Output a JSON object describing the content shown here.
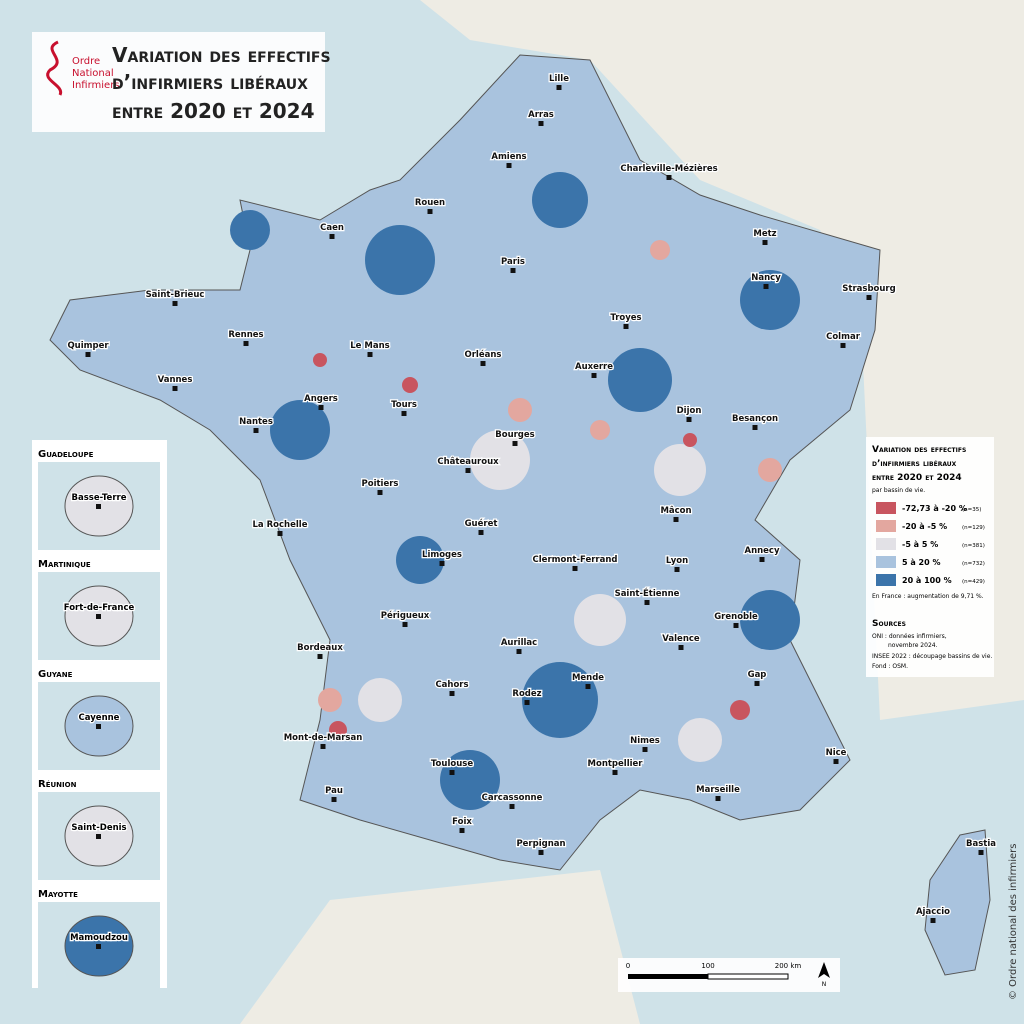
{
  "header": {
    "logo": [
      "Ordre",
      "National",
      "Infirmiers"
    ],
    "title": [
      "Variation des effectifs",
      "d’infirmiers libéraux",
      "entre 2020 et 2024"
    ]
  },
  "cities": [
    "Lille",
    "Arras",
    "Amiens",
    "Charleville-Mézières",
    "Rouen",
    "Caen",
    "Paris",
    "Metz",
    "Nancy",
    "Strasbourg",
    "Saint-Brieuc",
    "Rennes",
    "Le Mans",
    "Troyes",
    "Colmar",
    "Quimper",
    "Vannes",
    "Orléans",
    "Auxerre",
    "Angers",
    "Tours",
    "Nantes",
    "Dijon",
    "Besançon",
    "Bourges",
    "Châteauroux",
    "Poitiers",
    "Mâcon",
    "Guéret",
    "La Rochelle",
    "Annecy",
    "Limoges",
    "Clermont-Ferrand",
    "Lyon",
    "Saint-Étienne",
    "Périgueux",
    "Grenoble",
    "Valence",
    "Bordeaux",
    "Aurillac",
    "Gap",
    "Cahors",
    "Rodez",
    "Mende",
    "Mont-de-Marsan",
    "Nimes",
    "Nice",
    "Toulouse",
    "Montpellier",
    "Marseille",
    "Pau",
    "Carcassonne",
    "Foix",
    "Perpignan",
    "Bastia",
    "Ajaccio"
  ],
  "insets": [
    {
      "title": "Guadeloupe",
      "city": "Basse-Terre"
    },
    {
      "title": "Martinique",
      "city": "Fort-de-France"
    },
    {
      "title": "Guyane",
      "city": "Cayenne"
    },
    {
      "title": "Réunion",
      "city": "Saint-Denis"
    },
    {
      "title": "Mayotte",
      "city": "Mamoudzou"
    }
  ],
  "legend": {
    "title": [
      "Variation des effectifs",
      "d’infirmiers libéraux",
      "entre 2020 et 2024"
    ],
    "subtitle": "par bassin de vie.",
    "items": [
      {
        "label": "-72,73 à -20 %",
        "count": "(n=35)",
        "color": "#c8555f"
      },
      {
        "label": "-20 à -5 %",
        "count": "(n=129)",
        "color": "#e3a79f"
      },
      {
        "label": "-5 à 5 %",
        "count": "(n=381)",
        "color": "#e2e1e6"
      },
      {
        "label": "5 à 20 %",
        "count": "(n=732)",
        "color": "#a9c3de"
      },
      {
        "label": "20 à 100 %",
        "count": "(n=429)",
        "color": "#3b74aa"
      }
    ],
    "note": "En France : augmentation de 9,71 %."
  },
  "sources": {
    "title": "Sources",
    "lines": [
      "ONI : données infirmiers,",
      "novembre 2024.",
      "INSEE 2022 : découpage bassins de vie.",
      "Fond : OSM."
    ]
  },
  "scale": {
    "ticks": [
      "0",
      "100",
      "200 km"
    ],
    "north": "N"
  },
  "credit": "© Ordre national des infirmiers"
}
